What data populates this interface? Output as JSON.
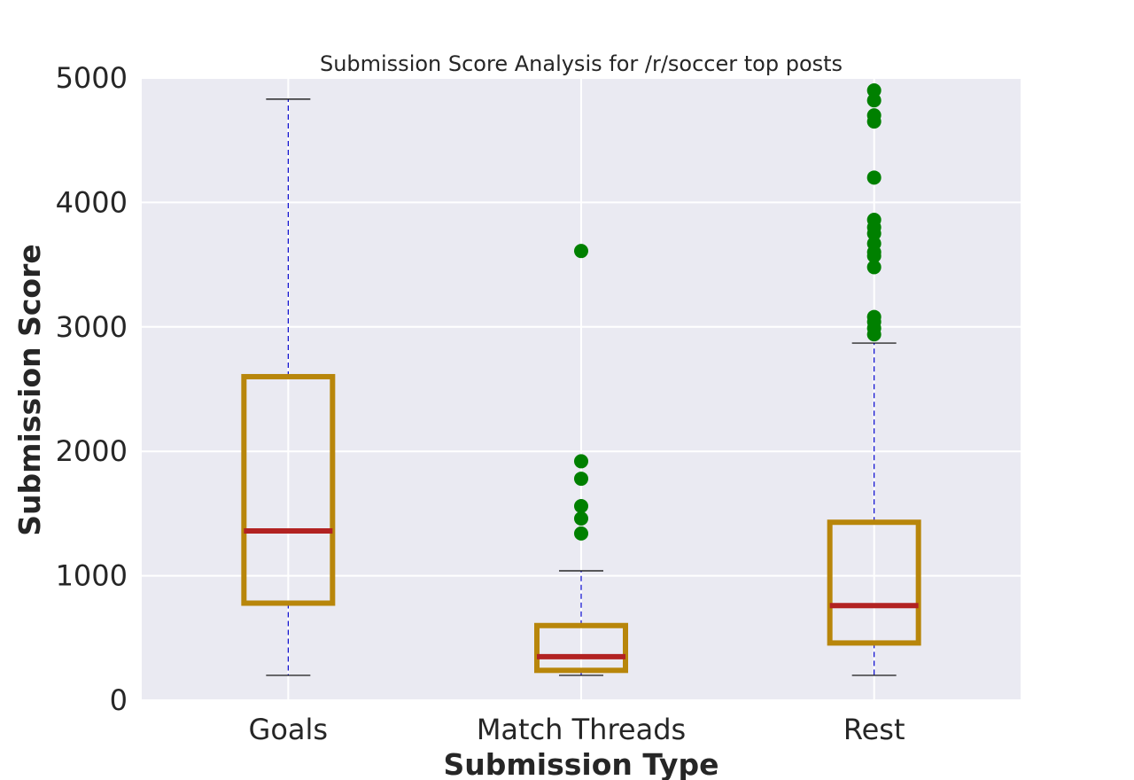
{
  "chart_data": {
    "type": "box",
    "title": "Submission Score Analysis for /r/soccer top posts",
    "xlabel": "Submission Type",
    "ylabel": "Submission Score",
    "categories": [
      "Goals",
      "Match Threads",
      "Rest"
    ],
    "ylim": [
      0,
      5000
    ],
    "yticks": [
      "0",
      "1000",
      "2000",
      "3000",
      "4000",
      "5000"
    ],
    "grid": true,
    "boxes": [
      {
        "category": "Goals",
        "whisker_low": 200,
        "q1": 780,
        "median": 1360,
        "q3": 2600,
        "whisker_high": 4830,
        "outliers": []
      },
      {
        "category": "Match Threads",
        "whisker_low": 200,
        "q1": 240,
        "median": 350,
        "q3": 600,
        "whisker_high": 1040,
        "outliers": [
          1340,
          1460,
          1560,
          1780,
          1920,
          3610
        ]
      },
      {
        "category": "Rest",
        "whisker_low": 200,
        "q1": 460,
        "median": 760,
        "q3": 1430,
        "whisker_high": 2870,
        "outliers": [
          2940,
          2990,
          3040,
          3080,
          3480,
          3570,
          3600,
          3670,
          3750,
          3800,
          3860,
          4200,
          4650,
          4700,
          4820,
          4900
        ]
      }
    ],
    "colors": {
      "plot_background": "#eaeaf2",
      "grid": "#ffffff",
      "box": "#b8860b",
      "median": "#b22222",
      "whisker": "#0000cc",
      "cap": "#000000",
      "outlier": "#008000"
    }
  }
}
